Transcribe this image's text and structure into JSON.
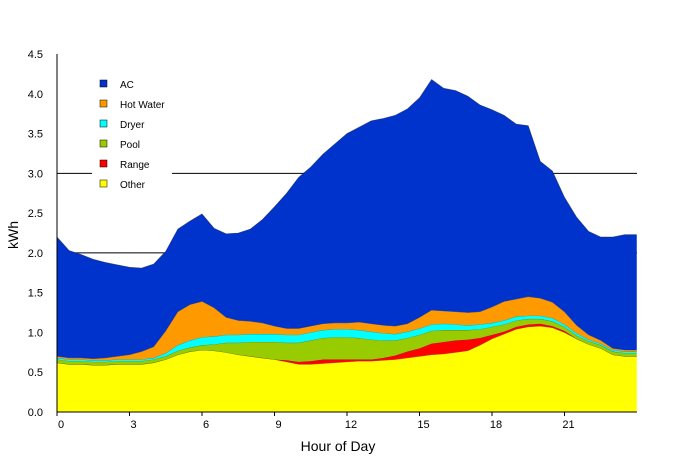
{
  "chart_data": {
    "type": "area",
    "stacked": true,
    "title": "",
    "xlabel": "Hour of Day",
    "ylabel": "kWh",
    "xlim": [
      0,
      24
    ],
    "ylim": [
      0,
      4.5
    ],
    "x_ticks": [
      0,
      3,
      6,
      9,
      12,
      15,
      18,
      21
    ],
    "y_ticks": [
      0.0,
      0.5,
      1.0,
      1.5,
      2.0,
      2.5,
      3.0,
      3.5,
      4.0,
      4.5
    ],
    "y_tick_labels": [
      "0.0",
      "0.5",
      "1.0",
      "1.5",
      "2.0",
      "2.5",
      "3.0",
      "3.5",
      "4.0",
      "4.5"
    ],
    "grid": "horizontal lines at 2.0 and 3.0",
    "legend_position": "top-left",
    "x": [
      0,
      0.5,
      1,
      1.5,
      2,
      2.5,
      3,
      3.5,
      4,
      4.5,
      5,
      5.5,
      6,
      6.5,
      7,
      7.5,
      8,
      8.5,
      9,
      9.5,
      10,
      10.5,
      11,
      11.5,
      12,
      12.5,
      13,
      13.5,
      14,
      14.5,
      15,
      15.5,
      16,
      16.5,
      17,
      17.5,
      18,
      18.5,
      19,
      19.5,
      20,
      20.5,
      21,
      21.5,
      22,
      22.5,
      23,
      23.5
    ],
    "series": [
      {
        "name": "Other",
        "color": "#FFFF00",
        "values": [
          0.62,
          0.6,
          0.6,
          0.59,
          0.59,
          0.6,
          0.6,
          0.6,
          0.62,
          0.66,
          0.72,
          0.76,
          0.78,
          0.77,
          0.75,
          0.72,
          0.7,
          0.68,
          0.66,
          0.63,
          0.6,
          0.6,
          0.61,
          0.62,
          0.63,
          0.64,
          0.64,
          0.65,
          0.66,
          0.68,
          0.7,
          0.72,
          0.73,
          0.75,
          0.77,
          0.84,
          0.92,
          0.98,
          1.04,
          1.07,
          1.08,
          1.06,
          1.0,
          0.92,
          0.85,
          0.8,
          0.72,
          0.7
        ]
      },
      {
        "name": "Range",
        "color": "#FF0000",
        "values": [
          0.0,
          0.0,
          0.0,
          0.0,
          0.0,
          0.0,
          0.0,
          0.0,
          0.0,
          0.0,
          0.0,
          0.0,
          0.0,
          0.0,
          0.0,
          0.0,
          0.0,
          0.0,
          0.0,
          0.02,
          0.03,
          0.04,
          0.05,
          0.04,
          0.03,
          0.02,
          0.02,
          0.03,
          0.05,
          0.08,
          0.1,
          0.14,
          0.15,
          0.15,
          0.14,
          0.09,
          0.05,
          0.03,
          0.03,
          0.03,
          0.03,
          0.02,
          0.02,
          0.0,
          0.0,
          0.0,
          0.0,
          0.0
        ]
      },
      {
        "name": "Pool",
        "color": "#99CC00",
        "values": [
          0.04,
          0.04,
          0.04,
          0.04,
          0.04,
          0.04,
          0.04,
          0.04,
          0.04,
          0.04,
          0.05,
          0.05,
          0.06,
          0.08,
          0.12,
          0.15,
          0.18,
          0.2,
          0.22,
          0.22,
          0.24,
          0.26,
          0.27,
          0.28,
          0.28,
          0.27,
          0.25,
          0.22,
          0.19,
          0.17,
          0.17,
          0.16,
          0.15,
          0.13,
          0.12,
          0.11,
          0.1,
          0.09,
          0.08,
          0.07,
          0.06,
          0.06,
          0.05,
          0.04,
          0.04,
          0.04,
          0.04,
          0.04
        ]
      },
      {
        "name": "Dryer",
        "color": "#00FFFF",
        "values": [
          0.02,
          0.02,
          0.02,
          0.02,
          0.02,
          0.02,
          0.02,
          0.02,
          0.02,
          0.04,
          0.07,
          0.09,
          0.1,
          0.1,
          0.1,
          0.1,
          0.1,
          0.1,
          0.1,
          0.1,
          0.1,
          0.1,
          0.1,
          0.1,
          0.1,
          0.1,
          0.1,
          0.09,
          0.08,
          0.08,
          0.08,
          0.08,
          0.08,
          0.07,
          0.06,
          0.06,
          0.05,
          0.05,
          0.05,
          0.04,
          0.04,
          0.04,
          0.03,
          0.03,
          0.02,
          0.02,
          0.02,
          0.02
        ]
      },
      {
        "name": "Hot Water",
        "color": "#FF9900",
        "values": [
          0.02,
          0.02,
          0.02,
          0.02,
          0.03,
          0.04,
          0.06,
          0.1,
          0.14,
          0.28,
          0.42,
          0.45,
          0.45,
          0.36,
          0.22,
          0.18,
          0.16,
          0.14,
          0.1,
          0.08,
          0.08,
          0.08,
          0.08,
          0.08,
          0.08,
          0.1,
          0.1,
          0.1,
          0.1,
          0.1,
          0.14,
          0.18,
          0.16,
          0.16,
          0.16,
          0.16,
          0.2,
          0.24,
          0.22,
          0.24,
          0.22,
          0.2,
          0.16,
          0.1,
          0.06,
          0.04,
          0.02,
          0.02
        ]
      },
      {
        "name": "AC",
        "color": "#0033CC",
        "values": [
          1.5,
          1.35,
          1.3,
          1.25,
          1.2,
          1.15,
          1.1,
          1.05,
          1.04,
          1.0,
          1.04,
          1.05,
          1.1,
          1.0,
          1.05,
          1.1,
          1.16,
          1.3,
          1.5,
          1.7,
          1.9,
          2.0,
          2.13,
          2.25,
          2.38,
          2.45,
          2.55,
          2.6,
          2.65,
          2.7,
          2.76,
          2.9,
          2.8,
          2.78,
          2.72,
          2.6,
          2.48,
          2.34,
          2.2,
          2.15,
          1.72,
          1.65,
          1.44,
          1.36,
          1.3,
          1.3,
          1.4,
          1.45
        ]
      }
    ]
  }
}
